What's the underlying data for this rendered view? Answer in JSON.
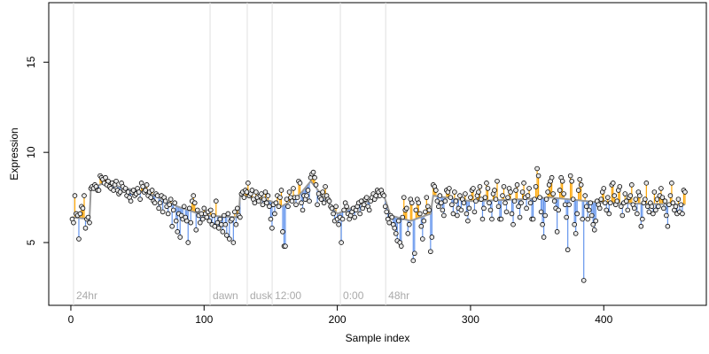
{
  "chart_data": {
    "type": "scatter",
    "x_label": "Sample index",
    "y_label": "Expression",
    "xlim": [
      -16.6,
      477
    ],
    "ylim": [
      1.52,
      18.3
    ],
    "xticks": [
      0,
      100,
      200,
      300,
      400
    ],
    "yticks": [
      5,
      10,
      15
    ],
    "point_color": "#e8e8e8",
    "above_color": "#ffa500",
    "below_color": "#6495ed",
    "fit_color": "#999999",
    "annotation_color": "#aaaaaa",
    "annotations": [
      {
        "label": "24hr",
        "x": 2
      },
      {
        "label": "dawn",
        "x": 104.5
      },
      {
        "label": "dusk",
        "x": 132.4
      },
      {
        "label": "12:00",
        "x": 151.1
      },
      {
        "label": "0:00",
        "x": 202.3
      },
      {
        "label": "48hr",
        "x": 236.3
      }
    ],
    "fit": {
      "x": [
        1,
        14,
        15,
        25,
        60,
        80,
        100,
        126,
        127,
        150,
        158,
        170,
        180,
        190,
        200,
        220,
        235,
        240,
        255,
        270,
        272,
        300,
        340,
        360,
        400,
        461
      ],
      "values": [
        6.4,
        6.3,
        8.0,
        8.3,
        7.7,
        7.0,
        6.5,
        6.4,
        7.6,
        7.3,
        7.0,
        7.5,
        8.4,
        7.5,
        6.6,
        7.2,
        7.6,
        6.5,
        6.2,
        6.6,
        7.6,
        7.3,
        7.4,
        7.5,
        7.2,
        7.1
      ]
    },
    "values": [
      6.3,
      6.1,
      7.6,
      6.6,
      6.5,
      5.2,
      6.6,
      7.0,
      6.9,
      7.6,
      5.8,
      6.3,
      6.4,
      6.1,
      8.0,
      8.1,
      8.0,
      8.2,
      8.1,
      7.9,
      7.9,
      8.7,
      8.6,
      8.5,
      8.3,
      8.6,
      8.2,
      8.4,
      8.1,
      8.0,
      8.3,
      7.9,
      8.2,
      8.4,
      7.9,
      7.7,
      7.8,
      8.3,
      8.1,
      7.9,
      8.0,
      7.6,
      7.8,
      7.5,
      7.3,
      7.8,
      7.9,
      7.6,
      7.7,
      8.0,
      7.8,
      7.4,
      8.3,
      8.1,
      7.8,
      7.9,
      8.2,
      7.6,
      7.8,
      7.5,
      7.9,
      7.3,
      7.2,
      7.7,
      7.6,
      6.9,
      7.2,
      7.6,
      6.7,
      7.5,
      7.3,
      7.0,
      6.6,
      7.1,
      7.4,
      5.9,
      6.8,
      7.2,
      6.2,
      5.6,
      6.6,
      5.3,
      6.5,
      6.3,
      7.0,
      6.4,
      6.2,
      5.0,
      6.9,
      6.1,
      7.3,
      7.6,
      7.2,
      5.7,
      6.8,
      6.5,
      6.1,
      6.6,
      6.3,
      6.9,
      6.6,
      6.4,
      6.7,
      6.2,
      6.8,
      6.0,
      6.5,
      5.9,
      7.3,
      6.1,
      5.8,
      6.3,
      6.0,
      5.6,
      6.5,
      6.0,
      5.4,
      6.6,
      5.2,
      6.2,
      6.3,
      5.0,
      6.7,
      6.0,
      6.9,
      6.5,
      6.4,
      7.7,
      7.8,
      7.5,
      7.9,
      7.8,
      8.3,
      7.6,
      7.7,
      7.9,
      7.4,
      7.2,
      7.8,
      7.5,
      7.3,
      7.6,
      7.7,
      7.1,
      7.4,
      7.8,
      7.2,
      7.6,
      7.0,
      6.3,
      5.8,
      7.1,
      6.6,
      7.2,
      7.6,
      7.0,
      7.5,
      7.9,
      5.6,
      4.8,
      4.8,
      7.4,
      7.0,
      7.8,
      7.5,
      7.3,
      8.0,
      7.5,
      7.1,
      7.5,
      8.4,
      8.3,
      7.2,
      6.8,
      7.6,
      7.4,
      7.6,
      7.9,
      7.3,
      8.6,
      8.8,
      8.9,
      8.6,
      8.2,
      7.1,
      7.7,
      7.5,
      7.4,
      7.8,
      7.2,
      8.1,
      7.6,
      7.4,
      7.3,
      7.0,
      6.9,
      6.6,
      6.2,
      7.0,
      6.3,
      6.0,
      6.4,
      5.0,
      6.3,
      6.8,
      7.2,
      7.0,
      6.6,
      6.3,
      6.5,
      6.7,
      6.9,
      6.4,
      6.8,
      7.0,
      7.2,
      6.6,
      7.3,
      6.9,
      7.1,
      7.4,
      7.5,
      7.0,
      6.8,
      7.3,
      7.5,
      7.7,
      7.4,
      7.6,
      7.9,
      7.8,
      7.6,
      7.9,
      7.7,
      7.6,
      7.0,
      6.7,
      6.3,
      6.1,
      6.5,
      6.4,
      6.0,
      5.8,
      5.5,
      5.1,
      6.2,
      5.0,
      4.8,
      6.4,
      7.5,
      6.8,
      6.9,
      5.5,
      6.0,
      7.4,
      7.2,
      4.0,
      4.4,
      6.8,
      7.4,
      7.2,
      6.6,
      5.9,
      5.2,
      6.2,
      6.7,
      7.5,
      7.0,
      6.8,
      4.5,
      5.3,
      8.2,
      8.1,
      7.9,
      7.3,
      7.0,
      7.6,
      7.2,
      6.8,
      6.5,
      7.3,
      7.9,
      7.8,
      8.0,
      7.5,
      7.1,
      6.6,
      7.8,
      7.3,
      6.5,
      6.9,
      7.6,
      6.8,
      7.4,
      7.2,
      7.7,
      6.6,
      6.2,
      6.9,
      7.5,
      7.9,
      8.0,
      6.7,
      7.3,
      7.6,
      7.8,
      8.1,
      7.4,
      6.3,
      6.9,
      7.5,
      8.3,
      8.0,
      7.2,
      6.8,
      6.3,
      7.7,
      7.9,
      7.4,
      8.4,
      7.0,
      6.3,
      6.3,
      7.6,
      8.1,
      7.2,
      6.7,
      7.5,
      8.0,
      7.8,
      6.6,
      6.0,
      7.3,
      7.9,
      8.2,
      7.0,
      6.4,
      7.2,
      7.8,
      8.3,
      7.5,
      6.9,
      7.6,
      8.0,
      7.2,
      6.3,
      6.3,
      7.4,
      8.1,
      9.1,
      8.7,
      7.5,
      6.7,
      6.0,
      5.3,
      6.5,
      7.4,
      7.8,
      8.2,
      8.4,
      8.6,
      7.7,
      7.3,
      6.9,
      5.6,
      6.8,
      7.9,
      8.6,
      8.4,
      7.7,
      7.1,
      6.4,
      4.6,
      7.1,
      8.7,
      8.4,
      7.4,
      6.0,
      5.5,
      6.6,
      7.9,
      8.5,
      8.2,
      6.3,
      2.9,
      7.6,
      7.0,
      6.3,
      6.8,
      7.2,
      6.5,
      6.0,
      5.7,
      6.2,
      7.3,
      7.1,
      6.9,
      7.4,
      7.8,
      8.0,
      7.2,
      6.8,
      7.5,
      6.6,
      7.2,
      8.2,
      8.3,
      7.6,
      7.1,
      7.3,
      7.9,
      8.1,
      7.0,
      6.5,
      7.2,
      7.7,
      7.3,
      6.8,
      7.5,
      7.6,
      8.2,
      7.1,
      6.9,
      7.4,
      6.6,
      7.8,
      7.6,
      5.9,
      6.3,
      7.2,
      7.4,
      8.3,
      7.0,
      6.7,
      7.2,
      7.0,
      6.6,
      7.8,
      6.8,
      7.4,
      7.0,
      7.6,
      8.0,
      7.5,
      6.9,
      7.3,
      6.5,
      5.9,
      7.1,
      7.6,
      8.3,
      7.2,
      6.8,
      7.0,
      6.6,
      7.4,
      6.7,
      7.1,
      6.6,
      7.9,
      7.8
    ]
  }
}
